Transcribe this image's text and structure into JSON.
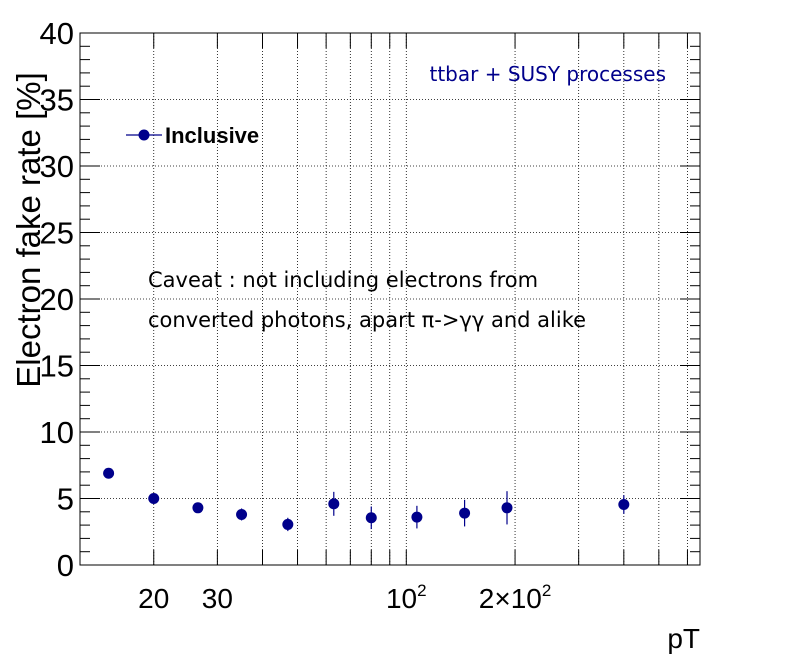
{
  "chart_data": {
    "type": "scatter",
    "xscale": "log",
    "xlim": [
      12.5,
      650
    ],
    "ylim": [
      0,
      40
    ],
    "xlabel": "pT",
    "ylabel": "Electron fake rate [%]",
    "y_ticks": [
      "0",
      "5",
      "10",
      "15",
      "20",
      "25",
      "30",
      "35",
      "40"
    ],
    "x_ticks": [
      {
        "value": 20,
        "label": "20",
        "sup": ""
      },
      {
        "value": 30,
        "label": "30",
        "sup": ""
      },
      {
        "value": 100,
        "label": "10",
        "sup": "2"
      },
      {
        "value": 200,
        "label": "2×10",
        "sup": "2"
      }
    ],
    "grid": true,
    "legend": {
      "position": "top-left",
      "entries": [
        "Inclusive"
      ]
    },
    "annotations": {
      "process": "ttbar + SUSY processes",
      "caveat_line1": "Caveat : not including electrons from",
      "caveat_line2": "converted photons, apart π->γγ and alike"
    },
    "series": [
      {
        "name": "Inclusive",
        "color": "#00008b",
        "x": [
          15,
          20,
          26.5,
          35,
          47,
          63,
          80,
          107,
          145,
          190,
          400
        ],
        "y": [
          6.9,
          5.0,
          4.3,
          3.8,
          3.05,
          4.6,
          3.55,
          3.6,
          3.9,
          4.3,
          4.55
        ],
        "err": [
          0.25,
          0.3,
          0.3,
          0.45,
          0.5,
          0.9,
          0.85,
          0.85,
          1.0,
          1.25,
          0.7
        ]
      }
    ]
  }
}
